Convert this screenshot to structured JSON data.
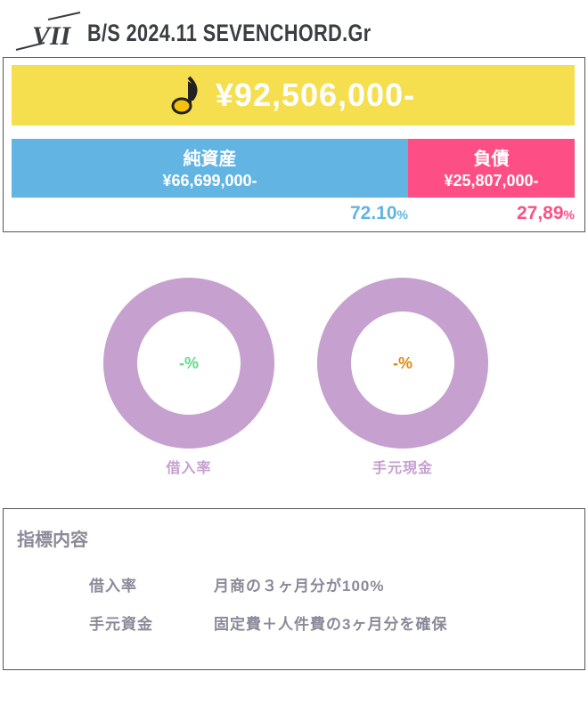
{
  "header": {
    "logo": "VII",
    "title": "B/S  2024.11 SEVENCHORD.Gr"
  },
  "balance": {
    "total": "¥92,506,000-",
    "total_icon": "music-note-icon",
    "equity": {
      "label": "純資産",
      "value": "¥66,699,000-",
      "percent": "72.10",
      "unit": "%",
      "color": "#62b4e3",
      "share": 72.1
    },
    "debt": {
      "label": "負債",
      "value": "¥25,807,000-",
      "percent": "27,89",
      "unit": "%",
      "color": "#fd4f86",
      "share": 27.89
    },
    "total_color": "#f5df4e"
  },
  "gauges": [
    {
      "label": "借入率",
      "value": "-",
      "unit": "%",
      "color": "#5fdb8a"
    },
    {
      "label": "手元現金",
      "value": "-",
      "unit": "%",
      "color": "#e08a10"
    }
  ],
  "info": {
    "title": "指標内容",
    "rows": [
      {
        "name": "借入率",
        "desc": "月商の３ヶ月分が100%"
      },
      {
        "name": "手元資金",
        "desc": "固定費＋人件費の3ヶ月分を確保"
      }
    ]
  }
}
